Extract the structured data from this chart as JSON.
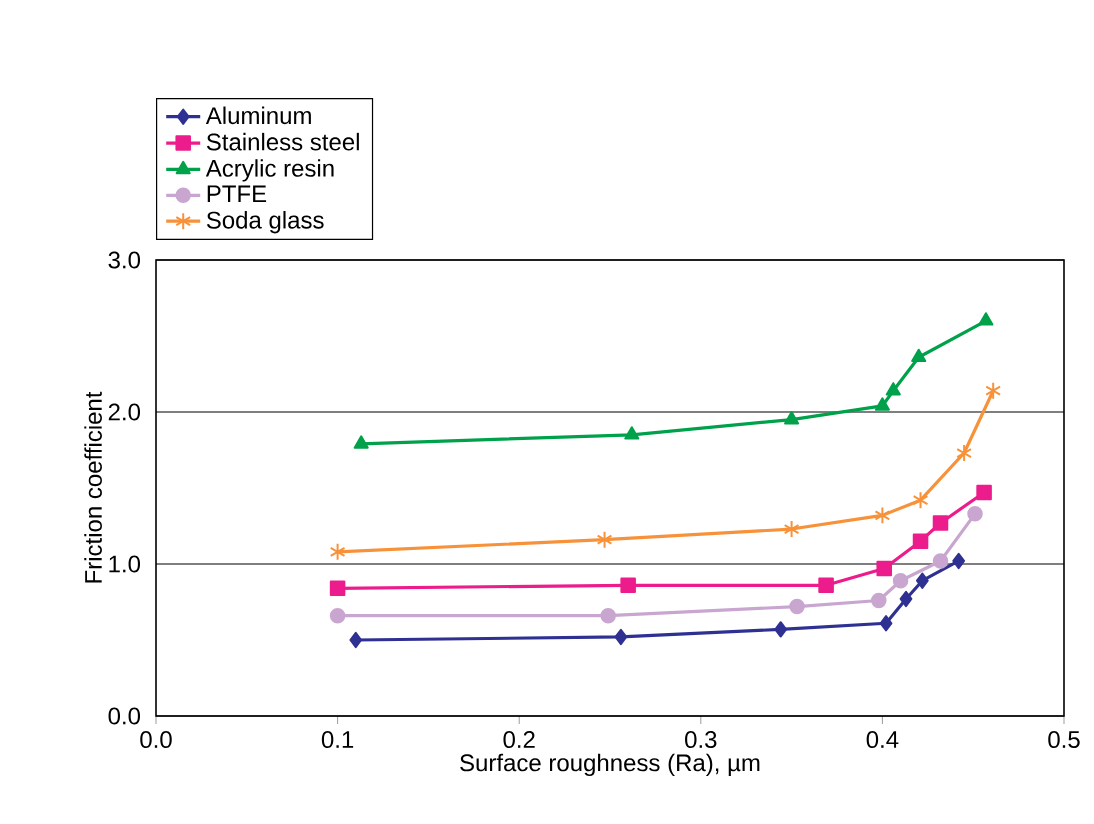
{
  "chart_data": {
    "type": "line",
    "xlabel": "Surface roughness (Ra), µm",
    "ylabel": "Friction coefficient",
    "xlim": [
      0,
      0.5
    ],
    "ylim": [
      0,
      3
    ],
    "xticks": [
      {
        "value": 0,
        "label": "0.0"
      },
      0.1,
      0.2,
      0.3,
      0.4,
      0.5
    ],
    "yticks": [
      {
        "value": 0,
        "label": "0.0"
      },
      {
        "value": 1,
        "label": "1.0"
      },
      {
        "value": 2,
        "label": "2.0"
      },
      {
        "value": 3,
        "label": "3.0"
      }
    ],
    "grid": "y",
    "legend": "top left",
    "series": [
      {
        "name": "Aluminum",
        "color": "#2e3192",
        "marker": "diamond",
        "x": [
          0.11,
          0.256,
          0.344,
          0.402,
          0.413,
          0.422,
          0.442
        ],
        "values": [
          0.5,
          0.52,
          0.57,
          0.61,
          0.77,
          0.89,
          1.02
        ]
      },
      {
        "name": "Stainless steel",
        "color": "#ec1c8c",
        "marker": "square",
        "x": [
          0.1,
          0.26,
          0.369,
          0.401,
          0.421,
          0.432,
          0.456
        ],
        "values": [
          0.84,
          0.86,
          0.86,
          0.97,
          1.15,
          1.27,
          1.47
        ]
      },
      {
        "name": "Acrylic resin",
        "color": "#00a14b",
        "marker": "triangle",
        "x": [
          0.113,
          0.262,
          0.35,
          0.4,
          0.406,
          0.42,
          0.457
        ],
        "values": [
          1.79,
          1.85,
          1.95,
          2.04,
          2.14,
          2.36,
          2.6
        ]
      },
      {
        "name": "PTFE",
        "color": "#c9a6d0",
        "marker": "circle",
        "x": [
          0.1,
          0.249,
          0.353,
          0.398,
          0.41,
          0.432,
          0.451
        ],
        "values": [
          0.66,
          0.66,
          0.72,
          0.76,
          0.89,
          1.02,
          1.33
        ]
      },
      {
        "name": "Soda glass",
        "color": "#f7923a",
        "marker": "cross",
        "x": [
          0.1,
          0.247,
          0.35,
          0.4,
          0.421,
          0.445,
          0.461
        ],
        "values": [
          1.08,
          1.16,
          1.23,
          1.32,
          1.42,
          1.73,
          2.14
        ]
      }
    ]
  }
}
